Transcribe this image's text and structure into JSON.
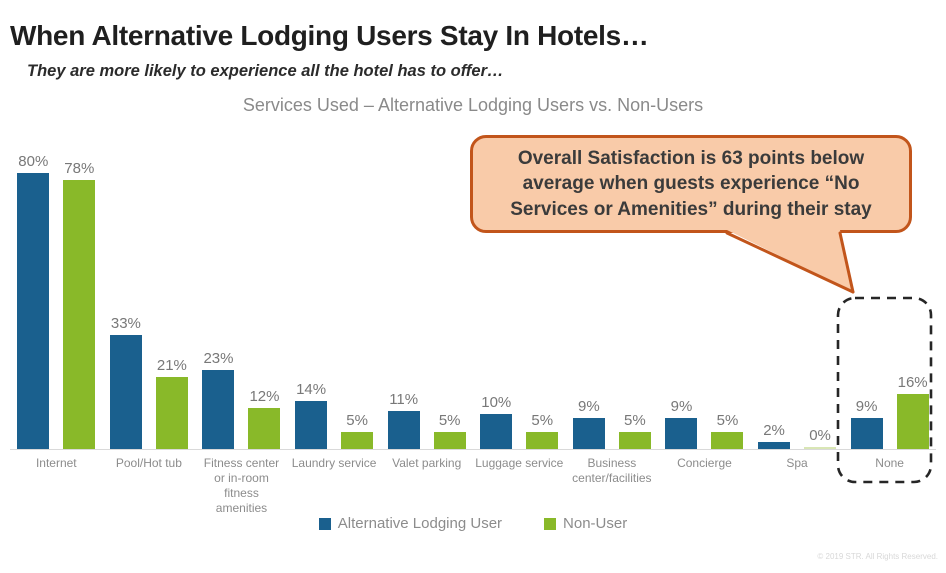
{
  "slide": {
    "title": "When Alternative Lodging Users Stay In Hotels…",
    "subtitle": "They are more likely to experience all the hotel has to offer…",
    "footer": "© 2019 STR. All Rights Reserved."
  },
  "callout": {
    "text": "Overall Satisfaction is 63 points below average when guests experience “No Services or Amenities” during their stay"
  },
  "chart_data": {
    "type": "bar",
    "title": "Services Used – Alternative Lodging Users vs. Non-Users",
    "categories": [
      "Internet",
      "Pool/Hot tub",
      "Fitness center or in-room fitness amenities",
      "Laundry service",
      "Valet parking",
      "Luggage service",
      "Business center/facilities",
      "Concierge",
      "Spa",
      "None"
    ],
    "series": [
      {
        "name": "Alternative Lodging User",
        "color": "#1a608e",
        "values": [
          80,
          33,
          23,
          14,
          11,
          10,
          9,
          9,
          2,
          9
        ]
      },
      {
        "name": "Non-User",
        "color": "#89b929",
        "values": [
          78,
          21,
          12,
          5,
          5,
          5,
          5,
          5,
          0,
          16
        ]
      }
    ],
    "value_suffix": "%",
    "ylim": [
      0,
      100
    ],
    "grid": false,
    "legend_position": "bottom",
    "highlight": {
      "category": "None",
      "style": "dashed-box"
    },
    "zero_bar_color": "#d9e6b5"
  },
  "colors": {
    "bar_blue": "#1a608e",
    "bar_green": "#89b929",
    "callout_fill": "#f9cba9",
    "callout_border": "#c2551b",
    "axis_line": "#d9d9d9",
    "label_gray": "#8c8c8c"
  }
}
